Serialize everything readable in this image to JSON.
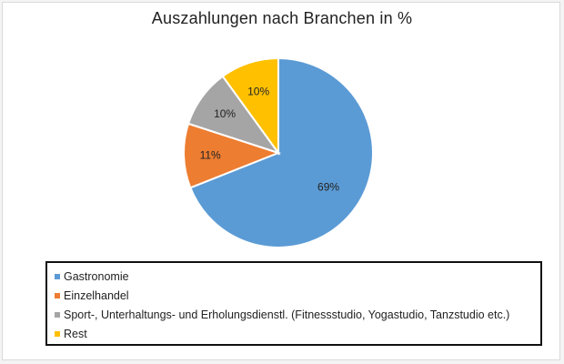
{
  "chart_data": {
    "type": "pie",
    "title": "Auszahlungen nach Branchen in %",
    "slices": [
      {
        "label": "Gastronomie",
        "value": 69,
        "value_label": "69%",
        "color": "#5b9bd5"
      },
      {
        "label": "Einzelhandel",
        "value": 11,
        "value_label": "11%",
        "color": "#ed7d31"
      },
      {
        "label": "Sport-, Unterhaltungs- und Erholungsdienstl. (Fitnessstudio, Yogastudio, Tanzstudio etc.)",
        "value": 10,
        "value_label": "10%",
        "color": "#a5a5a5"
      },
      {
        "label": "Rest",
        "value": 10,
        "value_label": "10%",
        "color": "#ffc000"
      }
    ],
    "legend_position": "bottom"
  }
}
